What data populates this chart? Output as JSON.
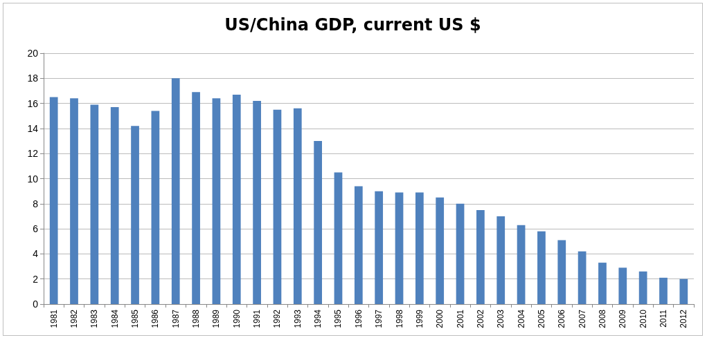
{
  "chart_data": {
    "type": "bar",
    "title": "US/China GDP, current US $",
    "categories": [
      "1981",
      "1982",
      "1983",
      "1984",
      "1985",
      "1986",
      "1987",
      "1988",
      "1989",
      "1990",
      "1991",
      "1992",
      "1993",
      "1994",
      "1995",
      "1996",
      "1997",
      "1998",
      "1999",
      "2000",
      "2001",
      "2002",
      "2003",
      "2004",
      "2005",
      "2006",
      "2007",
      "2008",
      "2009",
      "2010",
      "2011",
      "2012"
    ],
    "values": [
      16.5,
      16.4,
      15.9,
      15.7,
      14.2,
      15.4,
      18.0,
      16.9,
      16.4,
      16.7,
      16.2,
      15.5,
      15.6,
      13.0,
      10.5,
      9.4,
      9.0,
      8.9,
      8.9,
      8.5,
      8.0,
      7.5,
      7.0,
      6.3,
      5.8,
      5.1,
      4.2,
      3.3,
      2.9,
      2.6,
      2.1,
      2.0
    ],
    "color": "#4f81bd",
    "ylim": [
      0,
      20
    ],
    "yticks": [
      0,
      2,
      4,
      6,
      8,
      10,
      12,
      14,
      16,
      18,
      20
    ],
    "grid": "y"
  }
}
